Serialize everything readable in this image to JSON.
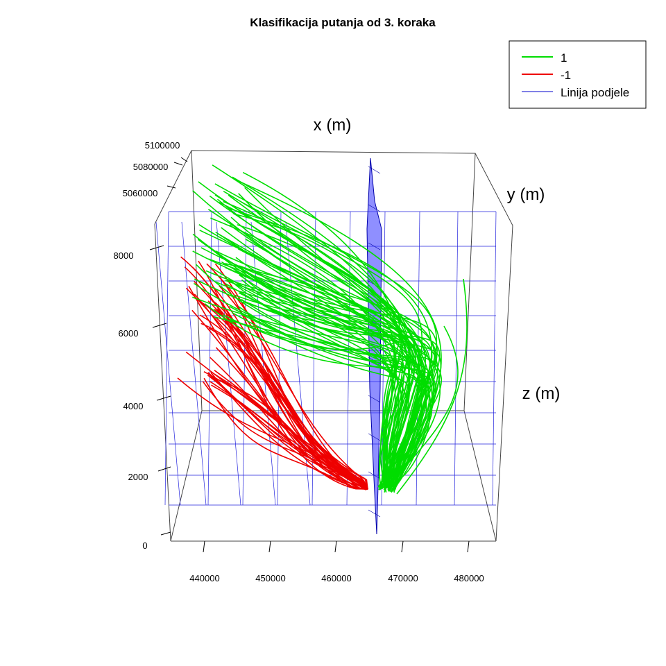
{
  "chart_data": {
    "type": "line",
    "projection": "3d",
    "title": "Klasifikacija putanja od 3. koraka",
    "axes": {
      "x": {
        "label": "x (m)",
        "ticks": [
          "440000",
          "450000",
          "460000",
          "470000",
          "480000"
        ],
        "range": [
          435000,
          484000
        ]
      },
      "y": {
        "label": "y (m)",
        "ticks": [
          "5060000",
          "5080000",
          "5100000"
        ],
        "range": [
          5050000,
          5110000
        ]
      },
      "z": {
        "label": "z (m)",
        "ticks": [
          "0",
          "2000",
          "4000",
          "6000",
          "8000"
        ],
        "range": [
          0,
          9000
        ]
      }
    },
    "grid": true,
    "legend": {
      "position": "top-right",
      "entries": [
        {
          "label": "1",
          "color": "#00dd00"
        },
        {
          "label": "-1",
          "color": "#ee0000"
        },
        {
          "label": "Linija podjele",
          "color": "#0000cc"
        }
      ]
    },
    "series": [
      {
        "name": "1",
        "color": "#00dd00",
        "count": 70,
        "x_range": [
          437000,
          479000
        ],
        "z_range": [
          1500,
          8900
        ],
        "end_x": 466000,
        "end_z": 900
      },
      {
        "name": "-1",
        "color": "#ee0000",
        "count": 40,
        "x_range": [
          436000,
          465000
        ],
        "z_range": [
          1600,
          7700
        ],
        "end_x": 464000,
        "end_z": 900
      },
      {
        "name": "Linija podjele",
        "color": "#0000cc",
        "type": "plane",
        "x": 466000
      }
    ]
  }
}
